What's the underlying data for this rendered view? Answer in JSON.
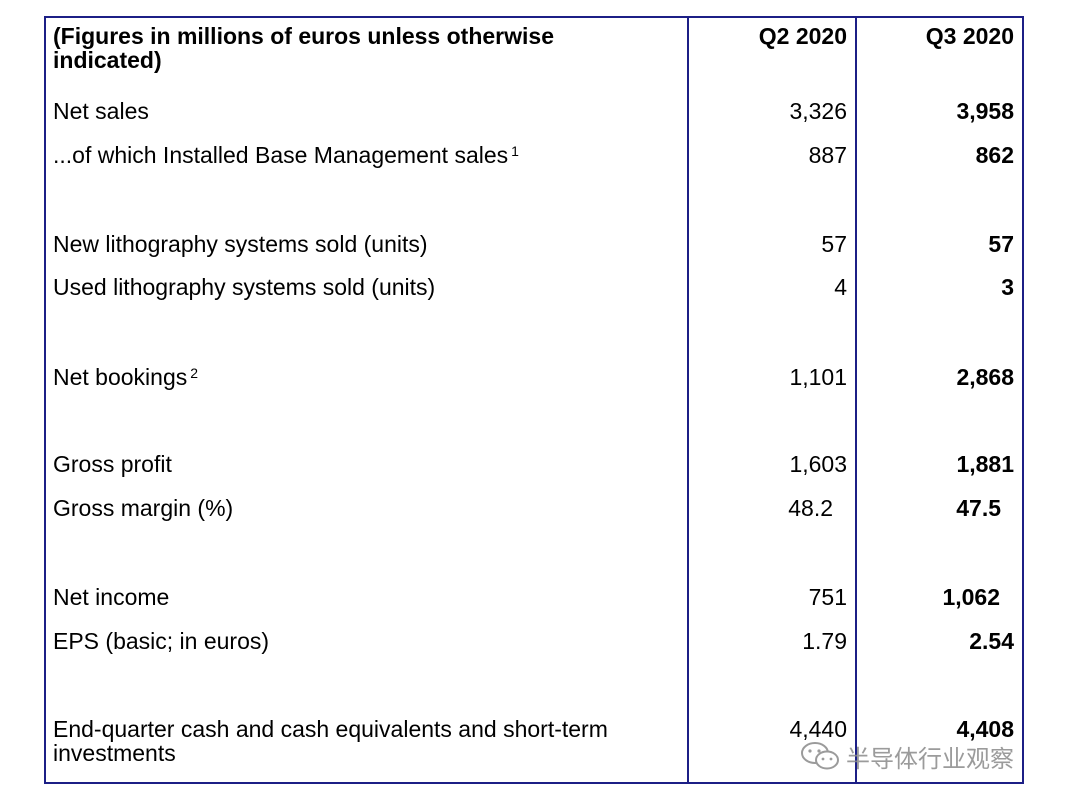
{
  "table": {
    "header_label": "(Figures in millions of euros unless otherwise indicated)",
    "col_q2": "Q2 2020",
    "col_q3": "Q3 2020",
    "rows": [
      {
        "label": "Net sales",
        "sup": "",
        "q2": "3,326",
        "q3": "3,958"
      },
      {
        "label": "...of which Installed Base Management sales",
        "sup": "1",
        "q2": "887",
        "q3": "862"
      },
      {
        "label": "New lithography systems sold (units)",
        "sup": "",
        "q2": "57",
        "q3": "57"
      },
      {
        "label": "Used lithography systems sold (units)",
        "sup": "",
        "q2": "4",
        "q3": "3"
      },
      {
        "label": "Net bookings",
        "sup": "2",
        "q2": "1,101",
        "q3": "2,868"
      },
      {
        "label": "Gross profit",
        "sup": "",
        "q2": "1,603",
        "q3": "1,881"
      },
      {
        "label": "Gross margin (%)",
        "sup": "",
        "q2": "48.2",
        "q3": "47.5"
      },
      {
        "label": "Net income",
        "sup": "",
        "q2": "751",
        "q3": "1,062"
      },
      {
        "label": "EPS (basic; in euros)",
        "sup": "",
        "q2": "1.79",
        "q3": "2.54"
      },
      {
        "label": "End-quarter cash and cash equivalents and short-term investments",
        "sup": "",
        "q2": "4,440",
        "q3": "4,408"
      }
    ]
  },
  "watermark": {
    "text": "半导体行业观察",
    "icon": "wechat-icon"
  },
  "colors": {
    "border": "#1c1f86",
    "watermark": "#8a8a8a"
  }
}
